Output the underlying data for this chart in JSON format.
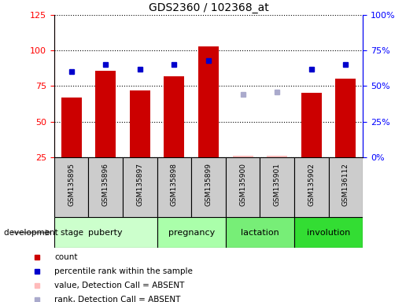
{
  "title": "GDS2360 / 102368_at",
  "samples": [
    "GSM135895",
    "GSM135896",
    "GSM135897",
    "GSM135898",
    "GSM135899",
    "GSM135900",
    "GSM135901",
    "GSM135902",
    "GSM136112"
  ],
  "count_values": [
    67,
    86,
    72,
    82,
    103,
    null,
    null,
    70,
    80
  ],
  "count_absent": [
    null,
    null,
    null,
    null,
    null,
    26,
    26,
    null,
    null
  ],
  "percentile_values": [
    60,
    65,
    62,
    65,
    68,
    null,
    null,
    62,
    65
  ],
  "percentile_absent": [
    null,
    null,
    null,
    null,
    null,
    44,
    46,
    null,
    null
  ],
  "stage_info": [
    {
      "label": "puberty",
      "start": 0,
      "end": 3,
      "color": "#ccffcc"
    },
    {
      "label": "pregnancy",
      "start": 3,
      "end": 5,
      "color": "#aaffaa"
    },
    {
      "label": "lactation",
      "start": 5,
      "end": 7,
      "color": "#77ee77"
    },
    {
      "label": "involution",
      "start": 7,
      "end": 9,
      "color": "#33dd33"
    }
  ],
  "ylim_left": [
    25,
    125
  ],
  "ylim_right": [
    0,
    100
  ],
  "bar_color": "#cc0000",
  "bar_absent_color": "#ffbbbb",
  "dot_color": "#0000cc",
  "dot_absent_color": "#aaaacc",
  "bar_width": 0.6,
  "sample_bg_color": "#cccccc",
  "plot_bg_color": "#ffffff",
  "legend_items": [
    {
      "color": "#cc0000",
      "label": "count"
    },
    {
      "color": "#0000cc",
      "label": "percentile rank within the sample"
    },
    {
      "color": "#ffbbbb",
      "label": "value, Detection Call = ABSENT"
    },
    {
      "color": "#aaaacc",
      "label": "rank, Detection Call = ABSENT"
    }
  ]
}
